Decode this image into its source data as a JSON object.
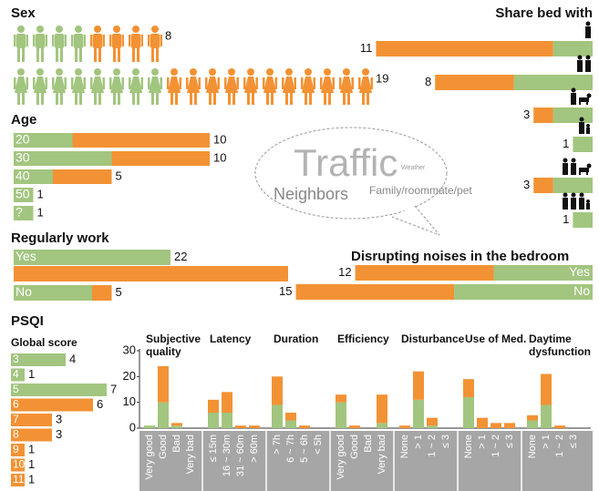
{
  "chart_data": [
    {
      "type": "pictogram",
      "title": "Sex",
      "series": [
        {
          "color": "#a2c57f",
          "values": [
            4,
            8
          ]
        },
        {
          "color": "#f39234",
          "values": [
            4,
            11
          ]
        }
      ],
      "totals": [
        8,
        19
      ]
    },
    {
      "type": "hbar",
      "title": "Age",
      "categories": [
        "20",
        "30",
        "40",
        "50",
        "?"
      ],
      "series": [
        {
          "color": "#a2c57f",
          "values": [
            3,
            5,
            2,
            1,
            1
          ]
        },
        {
          "color": "#f39234",
          "values": [
            7,
            5,
            3,
            0,
            0
          ]
        }
      ],
      "totals": [
        10,
        10,
        5,
        1,
        1
      ]
    },
    {
      "type": "hbar",
      "title": "Regularly work",
      "categories": [
        "Yes",
        "No"
      ],
      "wrap": true,
      "series": [
        {
          "color": "#a2c57f",
          "values": [
            8,
            4
          ]
        },
        {
          "color": "#f39234",
          "values": [
            14,
            1
          ]
        }
      ],
      "totals": [
        22,
        5
      ]
    },
    {
      "type": "hbar",
      "title": "Disrupting noises in the bedroom",
      "categories": [
        "Yes",
        "No"
      ],
      "align": "right",
      "series": [
        {
          "color": "#f39234",
          "values": [
            7,
            8
          ]
        },
        {
          "color": "#a2c57f",
          "values": [
            5,
            7
          ]
        }
      ],
      "totals": [
        12,
        15
      ]
    },
    {
      "type": "hbar",
      "title": "Share bed with",
      "align": "right",
      "series": [
        {
          "color": "#f39234",
          "values": [
            9,
            4,
            1,
            0,
            1,
            0
          ]
        },
        {
          "color": "#a2c57f",
          "values": [
            2,
            4,
            2,
            1,
            2,
            1
          ]
        }
      ],
      "totals": [
        11,
        8,
        3,
        1,
        3,
        1
      ]
    },
    {
      "type": "hbar",
      "title": "Global score",
      "categories": [
        "3",
        "4",
        "5",
        "6",
        "7",
        "8",
        "9",
        "10",
        "11"
      ],
      "series": [
        {
          "color": "#a2c57f",
          "values": [
            4,
            1,
            7,
            0,
            0,
            0,
            0,
            0,
            0
          ]
        },
        {
          "color": "#f39234",
          "values": [
            0,
            0,
            0,
            6,
            3,
            3,
            1,
            1,
            1
          ]
        }
      ],
      "totals": [
        4,
        1,
        7,
        6,
        3,
        3,
        1,
        1,
        1
      ]
    },
    {
      "type": "grouped_bar",
      "ylim": [
        0,
        30
      ],
      "yticks": [
        0,
        10,
        20,
        30
      ],
      "groups": [
        {
          "title": "Subjective quality",
          "categories": [
            "Very good",
            "Good",
            "Bad",
            "Very bad"
          ],
          "series": [
            {
              "color": "#a2c57f",
              "values": [
                1,
                10,
                1,
                0
              ]
            },
            {
              "color": "#f39234",
              "values": [
                0,
                14,
                1,
                0
              ]
            }
          ]
        },
        {
          "title": "Latency",
          "categories": [
            "≤ 15m",
            "16 ~ 30m",
            "31 ~ 60m",
            "> 60m"
          ],
          "series": [
            {
              "color": "#a2c57f",
              "values": [
                6,
                6,
                0,
                0
              ]
            },
            {
              "color": "#f39234",
              "values": [
                5,
                8,
                1,
                1
              ]
            }
          ]
        },
        {
          "title": "Duration",
          "categories": [
            "> 7h",
            "6 ~ 7h",
            "5 ~ 6h",
            "< 5h"
          ],
          "series": [
            {
              "color": "#a2c57f",
              "values": [
                9,
                3,
                0,
                0
              ]
            },
            {
              "color": "#f39234",
              "values": [
                11,
                3,
                1,
                0
              ]
            }
          ]
        },
        {
          "title": "Efficiency",
          "categories": [
            "Very good",
            "Good",
            "Bad",
            "Very bad"
          ],
          "series": [
            {
              "color": "#a2c57f",
              "values": [
                10,
                0,
                0,
                2
              ]
            },
            {
              "color": "#f39234",
              "values": [
                3,
                1,
                0,
                11
              ]
            }
          ]
        },
        {
          "title": "Disturbance",
          "categories": [
            "None",
            "> 1",
            "1 ~ 2",
            "≤ 3"
          ],
          "series": [
            {
              "color": "#a2c57f",
              "values": [
                0,
                11,
                1,
                0
              ]
            },
            {
              "color": "#f39234",
              "values": [
                1,
                11,
                3,
                0
              ]
            }
          ]
        },
        {
          "title": "Use of Med.",
          "categories": [
            "None",
            "> 1",
            "1 ~ 2",
            "≤ 3"
          ],
          "series": [
            {
              "color": "#a2c57f",
              "values": [
                12,
                0,
                0,
                0
              ]
            },
            {
              "color": "#f39234",
              "values": [
                7,
                4,
                2,
                2
              ]
            }
          ]
        },
        {
          "title": "Daytime dysfunction",
          "categories": [
            "None",
            "> 1",
            "1 ~ 2",
            "≤ 3"
          ],
          "series": [
            {
              "color": "#a2c57f",
              "values": [
                3,
                9,
                0,
                0
              ]
            },
            {
              "color": "#f39234",
              "values": [
                2,
                12,
                1,
                0
              ]
            }
          ]
        }
      ]
    }
  ],
  "section_title": "PSQI",
  "bubble": {
    "big": "Traffic",
    "small": "Weather",
    "medium": "Neighbors",
    "other": "Family/roommate/pet"
  }
}
